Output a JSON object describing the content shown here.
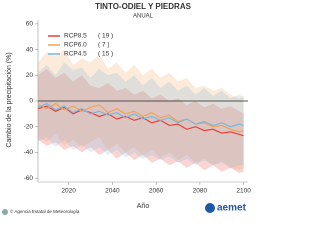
{
  "chart_data": {
    "type": "line",
    "title": "TINTO-ODIEL Y PIEDRAS",
    "subtitle": "ANUAL",
    "x_label": "Año",
    "y_label": "Cambio de la precipitación (%)",
    "x": [
      2006,
      2010,
      2014,
      2018,
      2022,
      2026,
      2030,
      2034,
      2038,
      2042,
      2046,
      2050,
      2054,
      2058,
      2062,
      2066,
      2070,
      2074,
      2078,
      2082,
      2086,
      2090,
      2094,
      2098,
      2100
    ],
    "series": [
      {
        "name": "RCP8.5",
        "count_label": "( 19 )",
        "color": "#e8413c",
        "values": [
          -6,
          -4,
          -8,
          -5,
          -10,
          -7,
          -9,
          -12,
          -10,
          -14,
          -12,
          -15,
          -13,
          -17,
          -15,
          -19,
          -18,
          -22,
          -20,
          -23,
          -22,
          -25,
          -24,
          -26,
          -27
        ],
        "upper": [
          20,
          25,
          18,
          22,
          15,
          20,
          12,
          10,
          14,
          8,
          10,
          5,
          8,
          2,
          5,
          0,
          2,
          -3,
          0,
          -5,
          -2,
          -6,
          -4,
          -8,
          -10
        ],
        "lower": [
          -30,
          -35,
          -32,
          -38,
          -35,
          -40,
          -36,
          -42,
          -38,
          -45,
          -40,
          -46,
          -42,
          -48,
          -45,
          -50,
          -47,
          -52,
          -48,
          -54,
          -50,
          -55,
          -52,
          -56,
          -55
        ]
      },
      {
        "name": "RCP6.0",
        "count_label": "(  7 )",
        "color": "#f2a15a",
        "values": [
          -3,
          -6,
          -2,
          -7,
          -4,
          -8,
          -5,
          -3,
          -9,
          -6,
          -10,
          -8,
          -12,
          -9,
          -13,
          -11,
          -16,
          -14,
          -18,
          -17,
          -20,
          -19,
          -22,
          -24,
          -23
        ],
        "upper": [
          30,
          38,
          35,
          40,
          28,
          33,
          30,
          36,
          25,
          30,
          22,
          28,
          20,
          25,
          18,
          22,
          15,
          18,
          10,
          12,
          8,
          10,
          5,
          2,
          4
        ],
        "lower": [
          -28,
          -32,
          -25,
          -35,
          -30,
          -36,
          -32,
          -28,
          -38,
          -33,
          -40,
          -36,
          -42,
          -38,
          -44,
          -40,
          -46,
          -42,
          -48,
          -45,
          -50,
          -47,
          -52,
          -54,
          -52
        ]
      },
      {
        "name": "RCP4.5",
        "count_label": "( 15 )",
        "color": "#7ab8dc",
        "values": [
          -5,
          -2,
          -7,
          -4,
          -9,
          -6,
          -10,
          -8,
          -11,
          -9,
          -13,
          -10,
          -14,
          -12,
          -15,
          -13,
          -17,
          -14,
          -18,
          -16,
          -19,
          -17,
          -20,
          -18,
          -19
        ],
        "upper": [
          22,
          28,
          20,
          30,
          24,
          26,
          18,
          25,
          20,
          22,
          15,
          20,
          12,
          18,
          10,
          15,
          8,
          12,
          5,
          10,
          4,
          8,
          2,
          5,
          3
        ],
        "lower": [
          -32,
          -28,
          -36,
          -30,
          -38,
          -34,
          -40,
          -36,
          -42,
          -38,
          -44,
          -40,
          -45,
          -42,
          -46,
          -43,
          -48,
          -45,
          -50,
          -46,
          -50,
          -48,
          -52,
          -50,
          -50
        ]
      }
    ],
    "xlim": [
      2006,
      2102
    ],
    "ylim": [
      -63,
      63
    ],
    "xticks": [
      2020,
      2040,
      2060,
      2080,
      2100
    ],
    "yticks": [
      -60,
      -40,
      -20,
      0,
      20,
      40,
      60
    ],
    "zero_line": true,
    "legend": "upper left"
  },
  "footer": {
    "credit": "© Agencia Estatal de Meteorología",
    "logo": "aemet"
  }
}
